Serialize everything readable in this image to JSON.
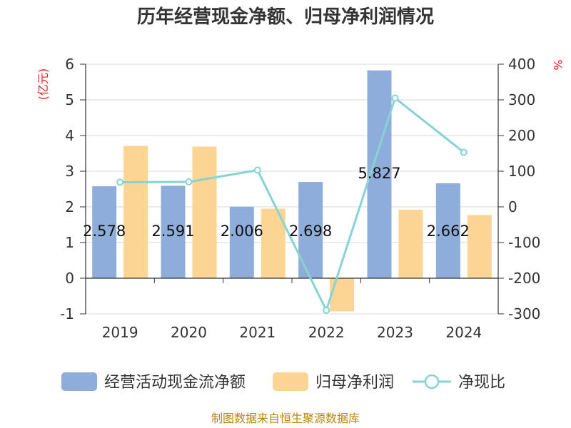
{
  "chart_data": {
    "type": "bar",
    "title": "历年经营现金净额、归母净利润情况",
    "categories": [
      "2019",
      "2020",
      "2021",
      "2022",
      "2023",
      "2024"
    ],
    "y_left": {
      "label": "(亿元)",
      "range": [
        -1,
        6
      ],
      "ticks": [
        "-1",
        "0",
        "1",
        "2",
        "3",
        "4",
        "5",
        "6"
      ]
    },
    "y_right": {
      "label": "%",
      "range": [
        -300,
        400
      ],
      "ticks": [
        "-300",
        "-200",
        "-100",
        "0",
        "100",
        "200",
        "300",
        "400"
      ]
    },
    "series": [
      {
        "name": "经营活动现金流净额",
        "type": "bar",
        "axis": "left",
        "values": [
          2.578,
          2.591,
          2.006,
          2.698,
          5.827,
          2.662
        ],
        "labels": [
          "2.578",
          "2.591",
          "2.006",
          "2.698",
          "5.827",
          "2.662"
        ]
      },
      {
        "name": "归母净利润",
        "type": "bar",
        "axis": "left",
        "values": [
          3.71,
          3.69,
          1.95,
          -0.93,
          1.92,
          1.77
        ]
      },
      {
        "name": "净现比",
        "type": "line",
        "axis": "right",
        "values": [
          69,
          70,
          103,
          -290,
          305,
          153
        ]
      }
    ],
    "legend": "bottom",
    "grid": true
  },
  "colors": {
    "cash": "#8eadda",
    "profit": "#fcd594",
    "ratio": "#86d3d6"
  },
  "source": "制图数据来自恒生聚源数据库"
}
